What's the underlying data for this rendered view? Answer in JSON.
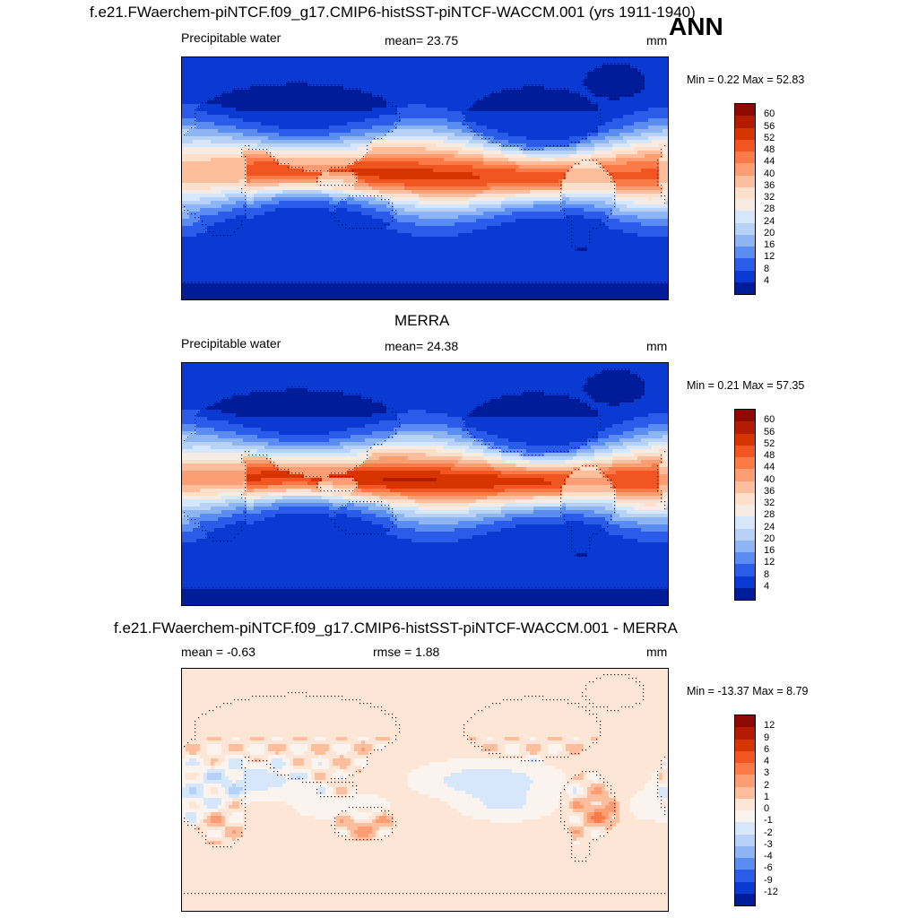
{
  "header": {
    "case_title": "f.e21.FWaerchem-piNTCF.f09_g17.CMIP6-histSST-piNTCF-WACCM.001 (yrs 1911-1940)",
    "season": "ANN"
  },
  "panels": [
    {
      "id": "model",
      "title": "",
      "left_label": "Precipitable water",
      "center_label": "mean=  23.75",
      "units": "mm",
      "minmax": "Min =   0.22 Max =  52.83",
      "colorbar": {
        "labels": [
          "60",
          "56",
          "52",
          "48",
          "44",
          "40",
          "36",
          "32",
          "28",
          "24",
          "20",
          "16",
          "12",
          "8",
          "4"
        ],
        "colors": [
          "#8c0a00",
          "#b31c00",
          "#d63500",
          "#f05522",
          "#fa7a48",
          "#fc9d74",
          "#fdbe9e",
          "#fde0cc",
          "#f6ece4",
          "#d7e7fb",
          "#b7d1f7",
          "#8db5f3",
          "#5a8cf1",
          "#2b5ce9",
          "#0b3ad2",
          "#001c99"
        ]
      },
      "field": "pw"
    },
    {
      "id": "obs",
      "title": "MERRA",
      "left_label": "Precipitable water",
      "center_label": "mean=  24.38",
      "units": "mm",
      "minmax": "Min =   0.21 Max =  57.35",
      "colorbar": {
        "labels": [
          "60",
          "56",
          "52",
          "48",
          "44",
          "40",
          "36",
          "32",
          "28",
          "24",
          "20",
          "16",
          "12",
          "8",
          "4"
        ],
        "colors": [
          "#8c0a00",
          "#b31c00",
          "#d63500",
          "#f05522",
          "#fa7a48",
          "#fc9d74",
          "#fdbe9e",
          "#fde0cc",
          "#f6ece4",
          "#d7e7fb",
          "#b7d1f7",
          "#8db5f3",
          "#5a8cf1",
          "#2b5ce9",
          "#0b3ad2",
          "#001c99"
        ]
      },
      "field": "pw"
    },
    {
      "id": "diff",
      "title": "f.e21.FWaerchem-piNTCF.f09_g17.CMIP6-histSST-piNTCF-WACCM.001 - MERRA",
      "left_label": "mean =  -0.63",
      "center_label": "rmse =   1.88",
      "units": "mm",
      "minmax": "Min = -13.37 Max =   8.79",
      "colorbar": {
        "labels": [
          "12",
          "9",
          "6",
          "4",
          "3",
          "2",
          "1",
          "0",
          "-1",
          "-2",
          "-3",
          "-4",
          "-6",
          "-9",
          "-12"
        ],
        "colors": [
          "#8c0a00",
          "#b31c00",
          "#d63500",
          "#f05522",
          "#fa7a48",
          "#fc9d74",
          "#fdbe9e",
          "#fde6d6",
          "#fbf4ee",
          "#d7e7fb",
          "#b7d1f7",
          "#8db5f3",
          "#5a8cf1",
          "#2b5ce9",
          "#0b3ad2",
          "#001c99"
        ]
      },
      "field": "diff"
    }
  ]
}
